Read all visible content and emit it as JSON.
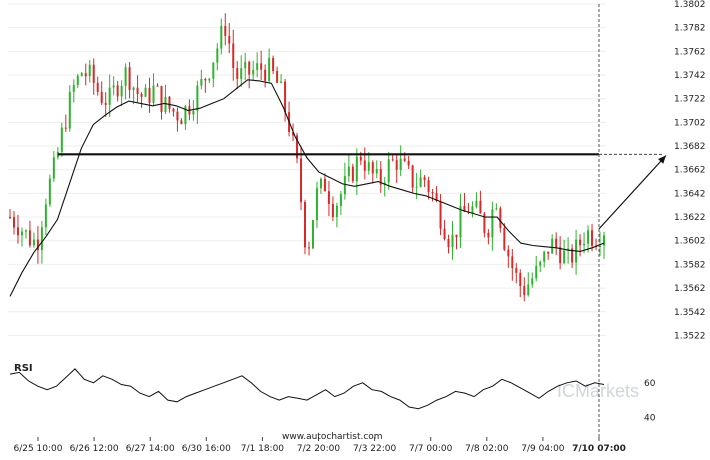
{
  "chart_data": {
    "type": "candlestick",
    "source_text": "www.autochartist.com",
    "watermark": "ICMarkets",
    "x_ticks": [
      "6/25 10:00",
      "6/26 12:00",
      "6/27 14:00",
      "6/30 16:00",
      "7/1 18:00",
      "7/2 20:00",
      "7/3 22:00",
      "7/7 00:00",
      "7/8 02:00",
      "7/9 04:00",
      "7/10 07:00"
    ],
    "price_axis": {
      "ylim": [
        1.3508,
        1.3802
      ],
      "ticks": [
        "1.3802",
        "1.3782",
        "1.3762",
        "1.3742",
        "1.3722",
        "1.3702",
        "1.3682",
        "1.3662",
        "1.3642",
        "1.3622",
        "1.3602",
        "1.3582",
        "1.3562",
        "1.3542",
        "1.3522"
      ]
    },
    "resistance_level": 1.3675,
    "projection": {
      "from": 1.3612,
      "to": 1.3674
    },
    "price_path": [
      1.3622,
      1.3615,
      1.3605,
      1.36,
      1.364,
      1.3665,
      1.37,
      1.373,
      1.3745,
      1.374,
      1.3725,
      1.372,
      1.3735,
      1.3745,
      1.3728,
      1.3722,
      1.373,
      1.3718,
      1.3712,
      1.3708,
      1.3718,
      1.373,
      1.3745,
      1.3765,
      1.3785,
      1.374,
      1.3742,
      1.3745,
      1.3748,
      1.3745,
      1.373,
      1.37,
      1.366,
      1.359,
      1.364,
      1.365,
      1.363,
      1.3645,
      1.366,
      1.3675,
      1.366,
      1.365,
      1.3665,
      1.367,
      1.366,
      1.365,
      1.3655,
      1.364,
      1.362,
      1.36,
      1.362,
      1.363,
      1.3625,
      1.361,
      1.364,
      1.36,
      1.3575,
      1.356,
      1.357,
      1.358,
      1.36,
      1.3595,
      1.3585,
      1.3595,
      1.361,
      1.3605,
      1.3612
    ],
    "ma_path": [
      1.3555,
      1.3575,
      1.3592,
      1.3605,
      1.362,
      1.365,
      1.368,
      1.37,
      1.3708,
      1.3715,
      1.372,
      1.3718,
      1.3716,
      1.3718,
      1.3716,
      1.3712,
      1.3714,
      1.3718,
      1.3722,
      1.373,
      1.3738,
      1.3737,
      1.3735,
      1.3715,
      1.369,
      1.3672,
      1.366,
      1.3655,
      1.365,
      1.3648,
      1.365,
      1.3652,
      1.3648,
      1.3645,
      1.3642,
      1.364,
      1.3636,
      1.3632,
      1.3628,
      1.3625,
      1.3622,
      1.3622,
      1.361,
      1.36,
      1.3598,
      1.3597,
      1.3596,
      1.3594,
      1.3593,
      1.3596,
      1.36
    ],
    "rsi": {
      "label": "RSI",
      "ylim": [
        35,
        72
      ],
      "ticks": [
        "60",
        "40"
      ],
      "values": [
        65,
        66,
        61,
        58,
        56,
        58,
        63,
        68,
        62,
        60,
        64,
        62,
        59,
        58,
        54,
        52,
        55,
        50,
        49,
        52,
        54,
        56,
        58,
        60,
        62,
        64,
        60,
        55,
        52,
        50,
        52,
        51,
        50,
        53,
        56,
        52,
        54,
        58,
        60,
        56,
        55,
        52,
        50,
        46,
        45,
        47,
        50,
        52,
        55,
        54,
        52,
        56,
        58,
        62,
        60,
        57,
        54,
        51,
        55,
        58,
        60,
        61,
        58,
        60,
        59
      ]
    }
  }
}
